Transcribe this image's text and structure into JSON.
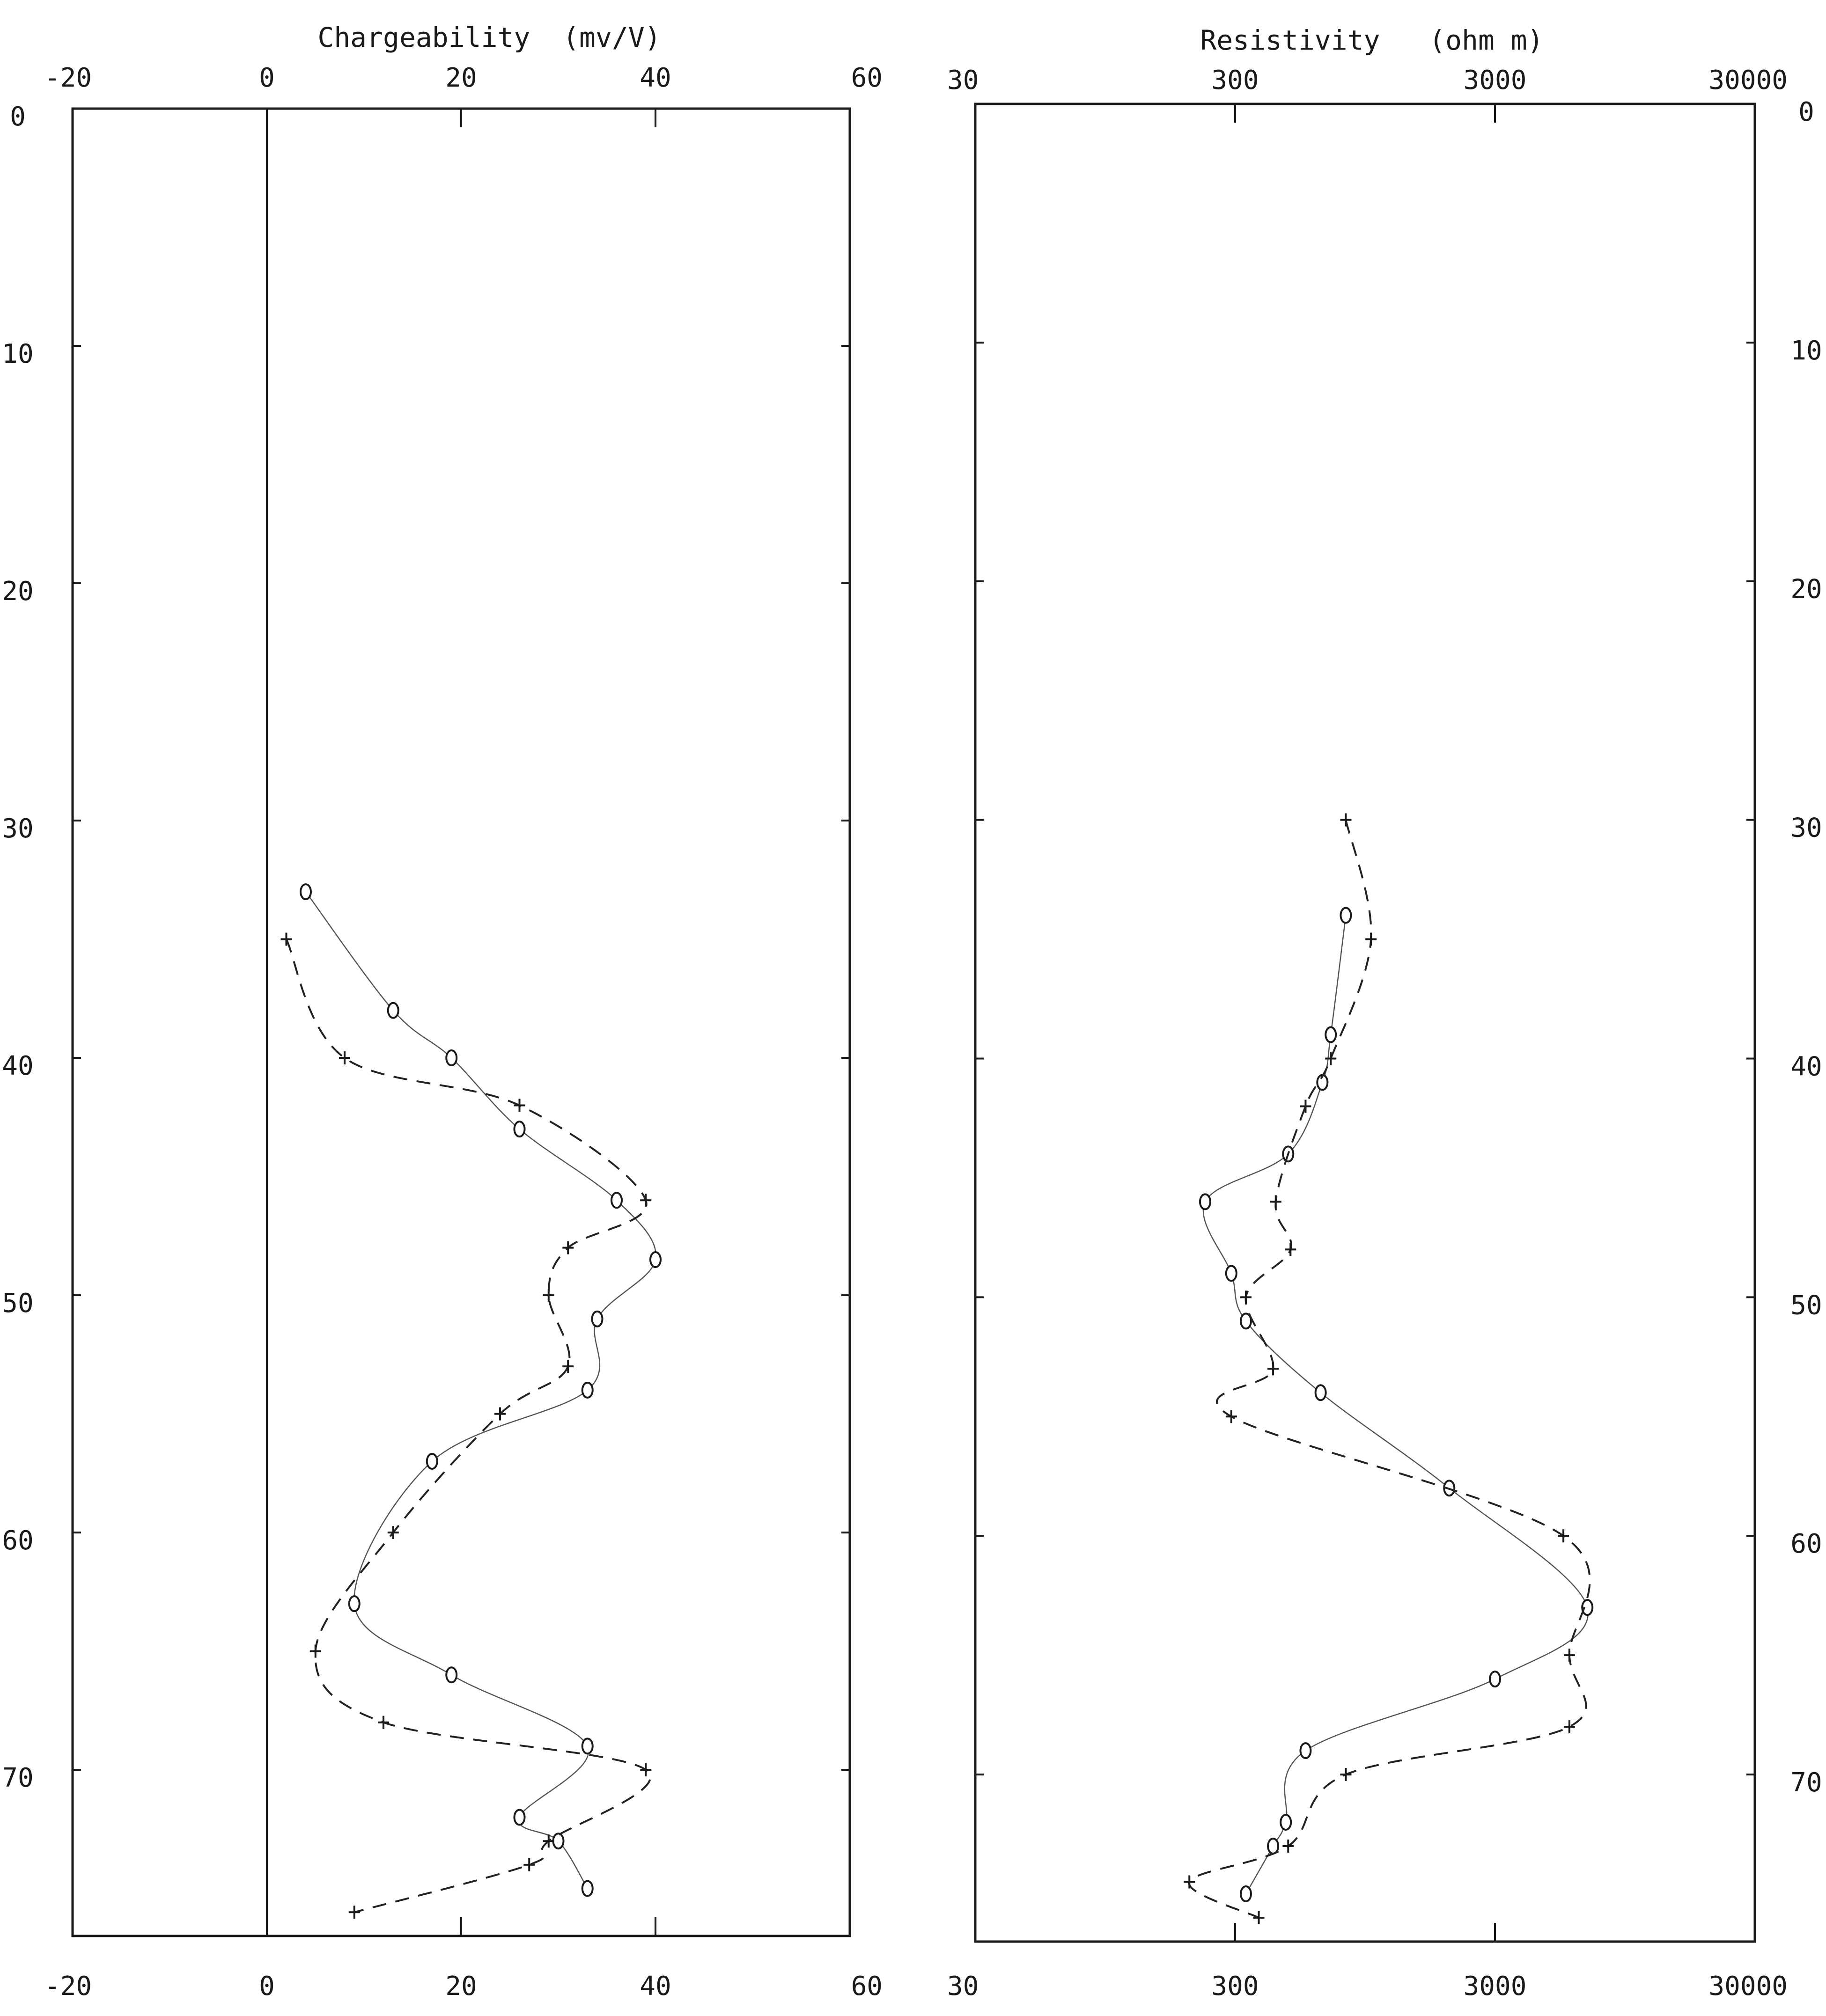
{
  "chart_data": [
    {
      "type": "line",
      "title": "Chargeability  (mv/V)",
      "x_scale": "linear",
      "xlim": [
        -20,
        60
      ],
      "x_ticks": [
        -20,
        0,
        20,
        40,
        60
      ],
      "x_tick_labels": [
        "-20",
        "0",
        "20",
        "40",
        "60"
      ],
      "ylim": [
        0,
        77
      ],
      "y_inverted": true,
      "y_ticks": [
        0,
        10,
        20,
        30,
        40,
        50,
        60,
        70
      ],
      "y_tick_labels": [
        "0",
        "10",
        "20",
        "30",
        "40",
        "50",
        "60",
        "70"
      ],
      "vertical_reference_at": 0,
      "series": [
        {
          "marker": "o",
          "style": "solid",
          "x": [
            4,
            13,
            19,
            26,
            36,
            40,
            34,
            33,
            17,
            9,
            19,
            33,
            26,
            30,
            33
          ],
          "y": [
            33,
            38,
            40,
            43,
            46,
            48.5,
            51,
            54,
            57,
            63,
            66,
            69,
            72,
            73,
            75
          ]
        },
        {
          "marker": "+",
          "style": "dashed",
          "x": [
            2,
            8,
            26,
            39,
            31,
            29,
            31,
            24,
            13,
            5,
            12,
            39,
            29,
            27,
            9
          ],
          "y": [
            35,
            40,
            42,
            46,
            48,
            50,
            53,
            55,
            60,
            65,
            68,
            70,
            73,
            74,
            76
          ]
        }
      ]
    },
    {
      "type": "line",
      "title": "Resistivity   (ohm m)",
      "x_scale": "log",
      "xlim": [
        30,
        30000
      ],
      "x_ticks": [
        30,
        300,
        3000,
        30000
      ],
      "x_tick_labels": [
        "30",
        "300",
        "3000",
        "30000"
      ],
      "ylim": [
        0,
        77
      ],
      "y_inverted": true,
      "y_ticks": [
        0,
        10,
        20,
        30,
        40,
        50,
        60,
        70
      ],
      "y_tick_labels": [
        "0",
        "10",
        "20",
        "30",
        "40",
        "50",
        "60",
        "70"
      ],
      "series": [
        {
          "marker": "o",
          "style": "solid",
          "x": [
            800,
            700,
            650,
            480,
            230,
            290,
            330,
            640,
            2000,
            6800,
            3000,
            560,
            470,
            420,
            330
          ],
          "y": [
            34,
            39,
            41,
            44,
            46,
            49,
            51,
            54,
            58,
            63,
            66,
            69,
            72,
            73,
            75
          ]
        },
        {
          "marker": "+",
          "style": "dashed",
          "x": [
            800,
            1000,
            700,
            560,
            430,
            490,
            330,
            420,
            290,
            5500,
            5800,
            5800,
            800,
            480,
            200,
            370
          ],
          "y": [
            30,
            35,
            40,
            42,
            46,
            48,
            50,
            53,
            55,
            60,
            65,
            68,
            70,
            73,
            74.5,
            76
          ]
        }
      ]
    }
  ]
}
